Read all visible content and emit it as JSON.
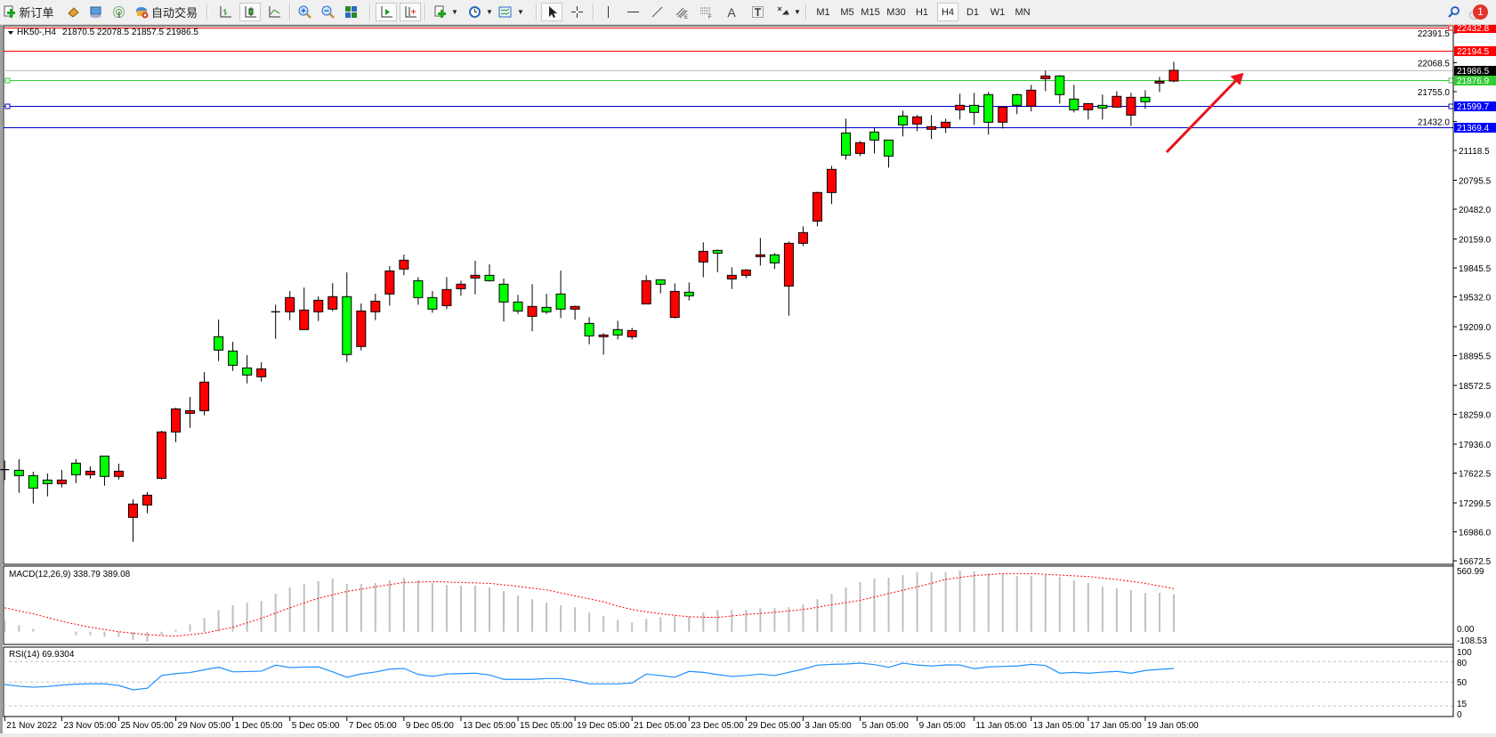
{
  "toolbar": {
    "new_order_label": "新订单",
    "auto_trading_label": "自动交易",
    "timeframes": [
      "M1",
      "M5",
      "M15",
      "M30",
      "H1",
      "H4",
      "D1",
      "W1",
      "MN"
    ],
    "active_timeframe": "H4",
    "notification_count": "1",
    "icons": [
      "new-order-icon",
      "market-watch-icon",
      "navigator-icon",
      "signals-icon",
      "auto-trading-icon",
      "bar-chart-icon",
      "candlestick-icon",
      "line-chart-icon",
      "zoom-in-icon",
      "zoom-out-icon",
      "tile-windows-icon",
      "auto-scroll-icon",
      "chart-shift-icon",
      "indicators-icon",
      "periods-icon",
      "templates-icon",
      "cursor-icon",
      "crosshair-icon",
      "vertical-line-icon",
      "horizontal-line-icon",
      "trendline-icon",
      "fibo-channel-icon",
      "fibo-retracement-icon",
      "text-icon",
      "text-label-icon",
      "arrows-icon",
      "search-icon",
      "notification-icon"
    ]
  },
  "chart_info": {
    "symbol": "HK50-,H4",
    "ohlc_text": "21870.5 22078.5 21857.5 21986.5"
  },
  "colors": {
    "bull_candle": "#ff0000",
    "bear_candle": "#00ff00",
    "macd_hist": "#c0c0c0",
    "macd_signal": "#ff0000",
    "rsi_line": "#1e90ff",
    "arrow": "#e8141e"
  },
  "chart_data": {
    "type": "candlestick",
    "symbol": "HK50-",
    "timeframe": "H4",
    "ylim": [
      16672.5,
      22432.8
    ],
    "y_tick_labels": [
      "22391.5",
      "22068.5",
      "21755.0",
      "21432.0",
      "21118.5",
      "20795.5",
      "20482.0",
      "20159.0",
      "19845.5",
      "19532.0",
      "19209.0",
      "18895.5",
      "18572.5",
      "18259.0",
      "17936.0",
      "17622.5",
      "17299.5",
      "16986.0",
      "16672.5"
    ],
    "x_tick_labels": [
      {
        "bar": 0,
        "label": "21 Nov 2022"
      },
      {
        "bar": 4,
        "label": "23 Nov 05:00"
      },
      {
        "bar": 8,
        "label": "25 Nov 05:00"
      },
      {
        "bar": 12,
        "label": "29 Nov 05:00"
      },
      {
        "bar": 16,
        "label": "1 Dec 05:00"
      },
      {
        "bar": 20,
        "label": "5 Dec 05:00"
      },
      {
        "bar": 24,
        "label": "7 Dec 05:00"
      },
      {
        "bar": 28,
        "label": "9 Dec 05:00"
      },
      {
        "bar": 32,
        "label": "13 Dec 05:00"
      },
      {
        "bar": 36,
        "label": "15 Dec 05:00"
      },
      {
        "bar": 40,
        "label": "19 Dec 05:00"
      },
      {
        "bar": 44,
        "label": "21 Dec 05:00"
      },
      {
        "bar": 48,
        "label": "23 Dec 05:00"
      },
      {
        "bar": 52,
        "label": "29 Dec 05:00"
      },
      {
        "bar": 56,
        "label": "3 Jan 05:00"
      },
      {
        "bar": 60,
        "label": "5 Jan 05:00"
      },
      {
        "bar": 64,
        "label": "9 Jan 05:00"
      },
      {
        "bar": 68,
        "label": "11 Jan 05:00"
      },
      {
        "bar": 72,
        "label": "13 Jan 05:00"
      },
      {
        "bar": 76,
        "label": "17 Jan 05:00"
      },
      {
        "bar": 80,
        "label": "19 Jan 05:00"
      }
    ],
    "ohlc": [
      [
        17660,
        17759,
        17547,
        17660
      ],
      [
        17653,
        17772,
        17409,
        17595
      ],
      [
        17595,
        17637,
        17293,
        17460
      ],
      [
        17547,
        17618,
        17370,
        17508
      ],
      [
        17508,
        17656,
        17467,
        17547
      ],
      [
        17730,
        17772,
        17515,
        17605
      ],
      [
        17605,
        17695,
        17563,
        17643
      ],
      [
        17807,
        17810,
        17486,
        17586
      ],
      [
        17586,
        17724,
        17553,
        17643
      ],
      [
        17142,
        17338,
        16878,
        17287
      ],
      [
        17277,
        17415,
        17187,
        17383
      ],
      [
        17566,
        18081,
        17553,
        18068
      ],
      [
        18068,
        18331,
        17958,
        18318
      ],
      [
        18270,
        18447,
        18113,
        18299
      ],
      [
        18299,
        18717,
        18248,
        18608
      ],
      [
        19100,
        19286,
        18836,
        18955
      ],
      [
        18945,
        19045,
        18730,
        18791
      ],
      [
        18762,
        18900,
        18595,
        18685
      ],
      [
        18666,
        18823,
        18614,
        18752
      ],
      [
        19370,
        19447,
        19077,
        19370
      ],
      [
        19370,
        19595,
        19280,
        19524
      ],
      [
        19177,
        19633,
        19175,
        19389
      ],
      [
        19370,
        19537,
        19270,
        19495
      ],
      [
        19399,
        19681,
        19376,
        19534
      ],
      [
        19534,
        19797,
        18826,
        18907
      ],
      [
        18994,
        19460,
        18952,
        19379
      ],
      [
        19370,
        19566,
        19280,
        19485
      ],
      [
        19563,
        19865,
        19437,
        19813
      ],
      [
        19833,
        19990,
        19765,
        19929
      ],
      [
        19707,
        19746,
        19447,
        19524
      ],
      [
        19524,
        19595,
        19360,
        19399
      ],
      [
        19437,
        19746,
        19399,
        19611
      ],
      [
        19620,
        19707,
        19543,
        19669
      ],
      [
        19736,
        19923,
        19559,
        19765
      ],
      [
        19765,
        19884,
        19698,
        19707
      ],
      [
        19669,
        19730,
        19264,
        19476
      ],
      [
        19476,
        19553,
        19347,
        19379
      ],
      [
        19321,
        19669,
        19158,
        19428
      ],
      [
        19418,
        19566,
        19347,
        19370
      ],
      [
        19563,
        19817,
        19302,
        19399
      ],
      [
        19399,
        19437,
        19283,
        19428
      ],
      [
        19244,
        19312,
        19019,
        19109
      ],
      [
        19100,
        19138,
        18907,
        19119
      ],
      [
        19177,
        19273,
        19071,
        19119
      ],
      [
        19100,
        19196,
        19071,
        19167
      ],
      [
        19456,
        19765,
        19456,
        19707
      ],
      [
        19717,
        19717,
        19569,
        19669
      ],
      [
        19309,
        19678,
        19299,
        19591
      ],
      [
        19582,
        19688,
        19492,
        19543
      ],
      [
        19910,
        20122,
        19743,
        20025
      ],
      [
        20035,
        20045,
        19800,
        20006
      ],
      [
        19726,
        19852,
        19617,
        19765
      ],
      [
        19765,
        19833,
        19736,
        19823
      ],
      [
        19968,
        20170,
        19871,
        19987
      ],
      [
        19987,
        20006,
        19833,
        19900
      ],
      [
        19649,
        20132,
        19328,
        20112
      ],
      [
        20112,
        20296,
        20083,
        20228
      ],
      [
        20353,
        20672,
        20296,
        20662
      ],
      [
        20662,
        20951,
        20537,
        20913
      ],
      [
        21308,
        21462,
        21019,
        21067
      ],
      [
        21086,
        21221,
        21057,
        21202
      ],
      [
        21318,
        21366,
        21086,
        21231
      ],
      [
        21231,
        21231,
        20932,
        21057
      ],
      [
        21491,
        21549,
        21270,
        21395
      ],
      [
        21405,
        21501,
        21327,
        21482
      ],
      [
        21347,
        21501,
        21241,
        21376
      ],
      [
        21366,
        21462,
        21308,
        21424
      ],
      [
        21559,
        21733,
        21453,
        21607
      ],
      [
        21607,
        21742,
        21395,
        21530
      ],
      [
        21723,
        21752,
        21289,
        21424
      ],
      [
        21424,
        21588,
        21356,
        21588
      ],
      [
        21723,
        21733,
        21511,
        21607
      ],
      [
        21598,
        21829,
        21540,
        21771
      ],
      [
        21896,
        21983,
        21761,
        21925
      ],
      [
        21925,
        21935,
        21626,
        21723
      ],
      [
        21675,
        21829,
        21530,
        21559
      ],
      [
        21559,
        21626,
        21453,
        21626
      ],
      [
        21607,
        21723,
        21453,
        21578
      ],
      [
        21588,
        21761,
        21578,
        21704
      ],
      [
        21501,
        21742,
        21385,
        21694
      ],
      [
        21694,
        21771,
        21569,
        21646
      ],
      [
        21848,
        21916,
        21752,
        21867
      ],
      [
        21870.5,
        22078.5,
        21857.5,
        21986.5
      ]
    ],
    "horizontal_lines": [
      {
        "price": "22432.8",
        "color": "#ff0000",
        "label_bg": "#ff0000"
      },
      {
        "price": "22194.5",
        "color": "#ff0000",
        "label_bg": "#ff0000"
      },
      {
        "price": "21986.5",
        "color": "#c0c0c0",
        "label_bg": "#000000"
      },
      {
        "price": "21876.9",
        "color": "#32cd32",
        "label_bg": "#32cd32"
      },
      {
        "price": "21599.7",
        "color": "#0000cd",
        "label_bg": "#0000ff"
      },
      {
        "price": "21369.4",
        "color": "#0000cd",
        "label_bg": "#0000ff"
      }
    ],
    "arrow_annotation": {
      "from_bar": 81.5,
      "from_price": 21100,
      "to_bar": 86.9,
      "to_price": 21960,
      "direction": "up-right"
    },
    "macd": {
      "label": "MACD(12,26,9) 338.79 389.08",
      "ylim": [
        -108.53,
        560.99
      ],
      "y_tick_labels": [
        "560.99",
        "0.00",
        "-108.53"
      ],
      "main": [
        100,
        59,
        27,
        -5,
        -5,
        -32,
        -32,
        -46,
        -46,
        -73,
        -92,
        -30,
        19,
        67,
        124,
        197,
        240,
        262,
        278,
        343,
        399,
        432,
        456,
        480,
        432,
        432,
        440,
        464,
        488,
        464,
        440,
        423,
        415,
        415,
        399,
        367,
        326,
        294,
        262,
        240,
        221,
        173,
        140,
        108,
        84,
        116,
        132,
        148,
        140,
        173,
        197,
        197,
        197,
        213,
        213,
        221,
        245,
        294,
        343,
        399,
        448,
        480,
        488,
        512,
        537,
        537,
        537,
        553,
        545,
        529,
        521,
        504,
        504,
        512,
        496,
        464,
        440,
        407,
        391,
        375,
        351,
        351,
        338.79
      ],
      "signal": [
        216,
        189,
        162,
        128,
        94,
        67,
        40,
        20,
        0,
        -14,
        -27,
        -34,
        -40,
        -27,
        -13,
        14,
        40,
        80,
        121,
        168,
        216,
        259,
        302,
        333,
        364,
        385,
        405,
        425,
        445,
        449,
        453,
        449,
        445,
        441,
        437,
        424,
        410,
        394,
        378,
        351,
        324,
        297,
        270,
        232,
        200,
        180,
        162,
        148,
        135,
        132,
        129,
        142,
        156,
        165,
        175,
        188,
        200,
        221,
        243,
        263,
        283,
        314,
        345,
        375,
        405,
        438,
        472,
        490,
        507,
        516,
        526,
        526,
        526,
        519,
        512,
        505,
        499,
        485,
        472,
        455,
        437,
        413,
        389.08
      ]
    },
    "rsi": {
      "label": "RSI(14) 69.9304",
      "ylim": [
        0,
        100
      ],
      "levels": [
        80,
        50,
        15
      ],
      "y_tick_labels": [
        "100",
        "80",
        "50",
        "15",
        "0"
      ],
      "values": [
        46.5,
        44,
        42.5,
        43.5,
        45.5,
        47,
        47.5,
        47.5,
        45,
        38.7,
        41,
        59.6,
        62.5,
        64,
        68,
        71.7,
        65,
        65.5,
        66,
        74.8,
        71.3,
        72,
        72.2,
        65,
        57,
        62,
        64.8,
        69,
        70,
        61.3,
        58.3,
        61.7,
        62.5,
        63,
        60.4,
        54,
        54,
        54,
        55.2,
        55.2,
        52,
        47.4,
        47.4,
        47.4,
        48.7,
        61.7,
        59.6,
        57,
        65.7,
        64.3,
        61,
        58.3,
        59.6,
        61.7,
        59.6,
        64.3,
        69,
        74.8,
        76,
        76.5,
        77.8,
        75.6,
        71.7,
        77.8,
        75,
        73.5,
        75.2,
        75,
        69.6,
        72.2,
        73,
        73.5,
        76,
        74.3,
        63,
        64.3,
        63,
        64.5,
        65.7,
        63,
        67,
        68.7,
        69.93
      ]
    }
  }
}
